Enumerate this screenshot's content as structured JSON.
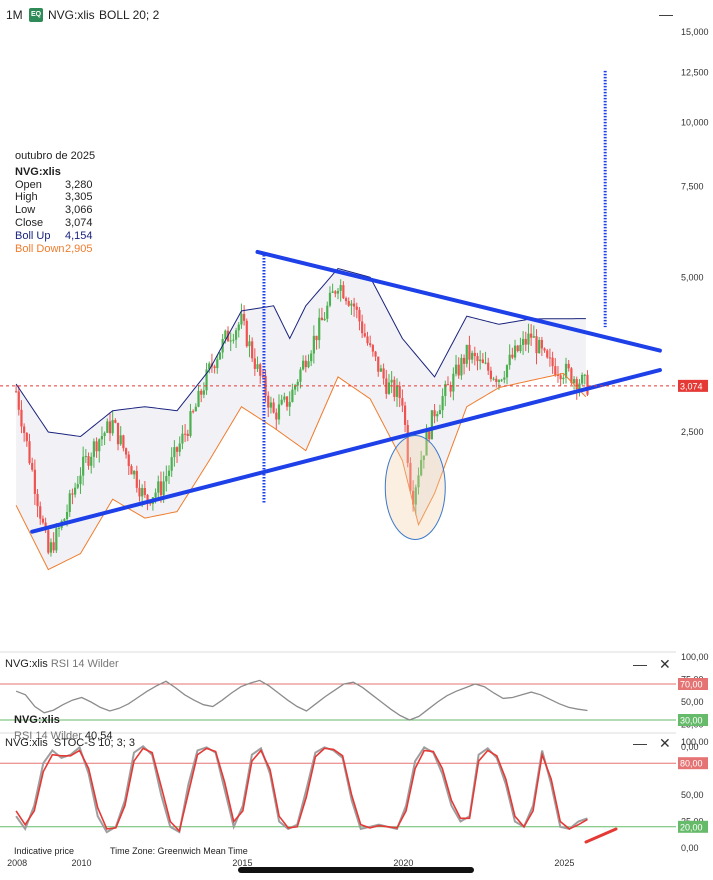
{
  "header": {
    "timeframe": "1M",
    "badge": "EQ",
    "symbol": "NVG:xlis",
    "indicator": "BOLL 20; 2"
  },
  "info_panel": {
    "date": "outubro de 2025",
    "symbol": "NVG:xlis",
    "rows": [
      {
        "label": "Open",
        "value": "3,280"
      },
      {
        "label": "High",
        "value": "3,305"
      },
      {
        "label": "Low",
        "value": "3,066"
      },
      {
        "label": "Close",
        "value": "3,074"
      },
      {
        "label": "Boll Up",
        "value": "4,154"
      },
      {
        "label": "Boll Down",
        "value": "2,905"
      }
    ]
  },
  "rsi_panel": {
    "title_symbol": "NVG:xlis",
    "title_indicator": "RSI 14 Wilder",
    "legend_symbol": "NVG:xlis",
    "legend_indicator": "RSI 14 Wilder",
    "legend_value": "40,54"
  },
  "stoch_panel": {
    "title": "NVG:xlis  STOC-S 10; 3; 3"
  },
  "footer": {
    "indicative": "Indicative price",
    "timezone": "Time Zone: Greenwich Mean Time"
  },
  "colors": {
    "up": "#4caf50",
    "down": "#ef5350",
    "boll_up": "#1a237e",
    "boll_down": "#f07c2e",
    "trendline": "#1e40e8",
    "current_price": "#e53935",
    "rsi_line": "#8c8c8c",
    "stoch_k": "#9e9e9e",
    "stoch_d": "#e53935"
  },
  "chart_data": [
    {
      "type": "candlestick",
      "title": "",
      "x_axis": {
        "ticks": [
          "2008",
          "2010",
          "2015",
          "2020",
          "2025"
        ]
      },
      "y_axis": {
        "scale": "log",
        "ticks": [
          "2,500",
          "5,000",
          "7,500",
          "10,000",
          "12,500",
          "15,000"
        ]
      },
      "current_price": 3.074,
      "series": [
        {
          "name": "Close",
          "points": [
            {
              "x": 2008.0,
              "y": 3.0
            },
            {
              "x": 2008.5,
              "y": 2.1
            },
            {
              "x": 2009.0,
              "y": 1.45
            },
            {
              "x": 2009.5,
              "y": 1.7
            },
            {
              "x": 2010.0,
              "y": 2.1
            },
            {
              "x": 2010.5,
              "y": 2.4
            },
            {
              "x": 2011.0,
              "y": 2.6
            },
            {
              "x": 2011.5,
              "y": 2.2
            },
            {
              "x": 2012.0,
              "y": 1.85
            },
            {
              "x": 2012.5,
              "y": 1.95
            },
            {
              "x": 2013.0,
              "y": 2.3
            },
            {
              "x": 2013.5,
              "y": 2.7
            },
            {
              "x": 2014.0,
              "y": 3.3
            },
            {
              "x": 2014.5,
              "y": 3.8
            },
            {
              "x": 2015.0,
              "y": 4.1
            },
            {
              "x": 2015.5,
              "y": 3.3
            },
            {
              "x": 2016.0,
              "y": 2.7
            },
            {
              "x": 2016.5,
              "y": 2.9
            },
            {
              "x": 2017.0,
              "y": 3.5
            },
            {
              "x": 2017.5,
              "y": 4.1
            },
            {
              "x": 2018.0,
              "y": 4.9
            },
            {
              "x": 2018.5,
              "y": 4.4
            },
            {
              "x": 2019.0,
              "y": 3.6
            },
            {
              "x": 2019.5,
              "y": 3.1
            },
            {
              "x": 2020.0,
              "y": 2.9
            },
            {
              "x": 2020.3,
              "y": 1.85
            },
            {
              "x": 2020.6,
              "y": 2.25
            },
            {
              "x": 2021.0,
              "y": 2.75
            },
            {
              "x": 2021.5,
              "y": 3.1
            },
            {
              "x": 2022.0,
              "y": 3.55
            },
            {
              "x": 2022.5,
              "y": 3.35
            },
            {
              "x": 2023.0,
              "y": 3.2
            },
            {
              "x": 2023.5,
              "y": 3.55
            },
            {
              "x": 2024.0,
              "y": 3.85
            },
            {
              "x": 2024.5,
              "y": 3.4
            },
            {
              "x": 2025.0,
              "y": 3.3
            },
            {
              "x": 2025.75,
              "y": 3.074
            }
          ]
        },
        {
          "name": "Boll Up",
          "points": [
            {
              "x": 2008.0,
              "y": 3.1
            },
            {
              "x": 2009.0,
              "y": 2.5
            },
            {
              "x": 2010.0,
              "y": 2.45
            },
            {
              "x": 2011.0,
              "y": 2.75
            },
            {
              "x": 2012.0,
              "y": 2.8
            },
            {
              "x": 2013.0,
              "y": 2.75
            },
            {
              "x": 2014.0,
              "y": 3.3
            },
            {
              "x": 2015.0,
              "y": 4.3
            },
            {
              "x": 2016.0,
              "y": 4.4
            },
            {
              "x": 2016.5,
              "y": 3.8
            },
            {
              "x": 2017.0,
              "y": 4.4
            },
            {
              "x": 2018.0,
              "y": 5.2
            },
            {
              "x": 2019.0,
              "y": 5.0
            },
            {
              "x": 2020.0,
              "y": 3.8
            },
            {
              "x": 2021.0,
              "y": 3.2
            },
            {
              "x": 2022.0,
              "y": 4.2
            },
            {
              "x": 2023.0,
              "y": 4.05
            },
            {
              "x": 2024.0,
              "y": 4.15
            },
            {
              "x": 2025.75,
              "y": 4.154
            }
          ]
        },
        {
          "name": "Boll Down",
          "points": [
            {
              "x": 2008.0,
              "y": 1.8
            },
            {
              "x": 2009.0,
              "y": 1.35
            },
            {
              "x": 2010.0,
              "y": 1.45
            },
            {
              "x": 2011.0,
              "y": 1.85
            },
            {
              "x": 2012.0,
              "y": 1.7
            },
            {
              "x": 2013.0,
              "y": 1.75
            },
            {
              "x": 2014.0,
              "y": 2.2
            },
            {
              "x": 2015.0,
              "y": 2.8
            },
            {
              "x": 2016.0,
              "y": 2.55
            },
            {
              "x": 2017.0,
              "y": 2.3
            },
            {
              "x": 2018.0,
              "y": 3.2
            },
            {
              "x": 2019.0,
              "y": 2.9
            },
            {
              "x": 2020.0,
              "y": 2.2
            },
            {
              "x": 2020.5,
              "y": 1.65
            },
            {
              "x": 2021.0,
              "y": 1.9
            },
            {
              "x": 2022.0,
              "y": 2.8
            },
            {
              "x": 2023.0,
              "y": 3.05
            },
            {
              "x": 2024.0,
              "y": 3.15
            },
            {
              "x": 2025.0,
              "y": 3.25
            },
            {
              "x": 2025.75,
              "y": 2.905
            }
          ]
        }
      ],
      "trendlines": [
        {
          "name": "upper",
          "from": {
            "x": 2015.5,
            "y": 5.6
          },
          "to": {
            "x": 2028.0,
            "y": 3.6
          }
        },
        {
          "name": "lower",
          "from": {
            "x": 2008.5,
            "y": 1.6
          },
          "to": {
            "x": 2028.0,
            "y": 3.3
          }
        }
      ]
    },
    {
      "type": "line",
      "title": "RSI 14 Wilder",
      "y_axis": {
        "ticks": [
          "100,00",
          "75,00",
          "50,00",
          "25,00",
          "0,00"
        ],
        "ylim": [
          0,
          100
        ]
      },
      "reference_lines": [
        70,
        30
      ],
      "last_value": 40.54,
      "series": [
        {
          "name": "RSI 14 Wilder",
          "values": [
            62,
            58,
            45,
            38,
            41,
            47,
            52,
            55,
            50,
            44,
            40,
            43,
            48,
            55,
            62,
            68,
            73,
            66,
            58,
            52,
            47,
            45,
            52,
            60,
            67,
            71,
            74,
            68,
            60,
            52,
            45,
            40,
            48,
            56,
            63,
            70,
            72,
            66,
            58,
            50,
            42,
            35,
            30,
            34,
            42,
            50,
            57,
            62,
            66,
            70,
            67,
            60,
            54,
            55,
            58,
            61,
            58,
            53,
            48,
            44,
            42,
            40.54
          ]
        }
      ]
    },
    {
      "type": "line",
      "title": "STOC-S 10; 3; 3",
      "y_axis": {
        "ticks": [
          "100,00",
          "80,00",
          "50,00",
          "25,00",
          "20,00",
          "0,00"
        ],
        "ylim": [
          0,
          100
        ]
      },
      "reference_lines": [
        80,
        20
      ],
      "series": [
        {
          "name": "%K",
          "values": [
            30,
            18,
            40,
            80,
            92,
            85,
            88,
            95,
            70,
            30,
            15,
            20,
            45,
            90,
            96,
            88,
            50,
            20,
            15,
            60,
            92,
            95,
            90,
            55,
            20,
            40,
            88,
            94,
            70,
            25,
            18,
            22,
            55,
            90,
            95,
            92,
            85,
            45,
            18,
            20,
            22,
            20,
            18,
            40,
            82,
            95,
            90,
            70,
            40,
            25,
            30,
            88,
            94,
            85,
            60,
            25,
            20,
            40,
            92,
            60,
            20,
            18,
            25,
            28
          ]
        },
        {
          "name": "%D",
          "values": [
            35,
            22,
            35,
            72,
            88,
            87,
            87,
            92,
            75,
            38,
            18,
            19,
            40,
            82,
            94,
            90,
            58,
            25,
            16,
            52,
            88,
            94,
            91,
            62,
            25,
            35,
            82,
            92,
            74,
            30,
            19,
            20,
            48,
            86,
            94,
            93,
            87,
            50,
            22,
            19,
            21,
            20,
            19,
            35,
            75,
            92,
            91,
            75,
            45,
            28,
            28,
            82,
            92,
            87,
            65,
            30,
            20,
            35,
            88,
            65,
            25,
            18,
            22,
            27
          ]
        }
      ]
    }
  ]
}
